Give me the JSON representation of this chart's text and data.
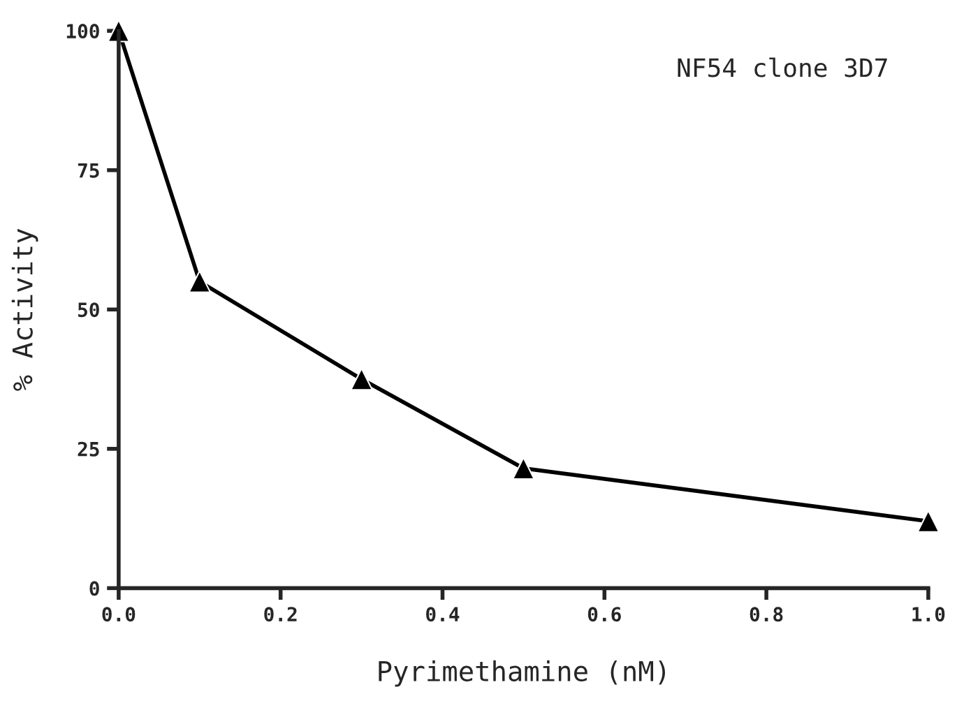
{
  "chart_data": {
    "type": "line",
    "xlabel": "Pyrimethamine (nM)",
    "ylabel": "% Activity",
    "annotations": [
      "NF54 clone 3D7"
    ],
    "x": [
      0.0,
      0.1,
      0.3,
      0.5,
      1.0
    ],
    "series": [
      {
        "color": "#000000",
        "values": [
          100,
          55,
          37.5,
          21.5,
          12
        ]
      }
    ],
    "xlim": [
      0,
      1
    ],
    "ylim": [
      0,
      100
    ],
    "xticks": [
      {
        "value": 0,
        "label": "0.0"
      },
      {
        "value": 0.2,
        "label": "0.2"
      },
      {
        "value": 0.4,
        "label": "0.4"
      },
      {
        "value": 0.6,
        "label": "0.6"
      },
      {
        "value": 0.8,
        "label": "0.8"
      },
      {
        "value": 1,
        "label": "1.0"
      }
    ],
    "yticks": [
      0,
      25,
      50,
      75,
      100
    ],
    "marker": "triangle",
    "line_style": "solid",
    "grid": false
  }
}
